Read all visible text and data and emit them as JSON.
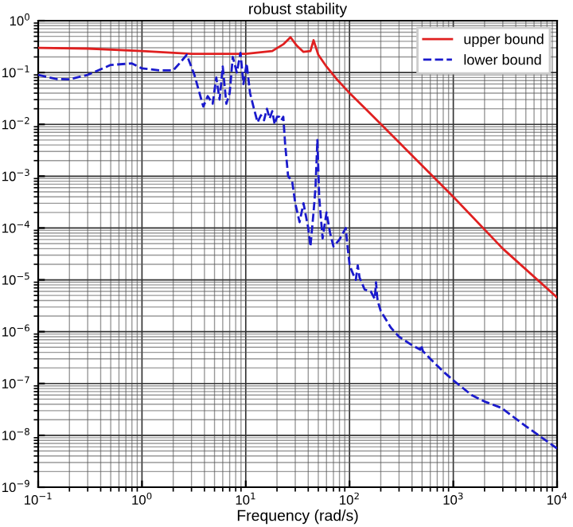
{
  "chart_data": {
    "type": "line",
    "title": "robust stability",
    "xlabel": "Frequency (rad/s)",
    "log": "xy",
    "grid": true,
    "legend": "top right",
    "xlim": [
      0.1,
      10000
    ],
    "ylim": [
      1e-09,
      1
    ],
    "xticks": [
      {
        "value": 0.1,
        "label": "10$^{−1}$"
      },
      {
        "value": 1,
        "label": "10$^{0}$"
      },
      {
        "value": 10,
        "label": "10$^{1}$"
      },
      {
        "value": 100,
        "label": "10$^{2}$"
      },
      {
        "value": 1000,
        "label": "10$^{3}$"
      },
      {
        "value": 10000,
        "label": "10$^{4}$"
      }
    ],
    "yticks": [
      {
        "value": 1e-09,
        "label": "10$^{−9}$"
      },
      {
        "value": 1e-08,
        "label": "10$^{−8}$"
      },
      {
        "value": 1e-07,
        "label": "10$^{−7}$"
      },
      {
        "value": 1e-06,
        "label": "10$^{−6}$"
      },
      {
        "value": 1e-05,
        "label": "10$^{−5}$"
      },
      {
        "value": 0.0001,
        "label": "10$^{−4}$"
      },
      {
        "value": 0.001,
        "label": "10$^{−3}$"
      },
      {
        "value": 0.01,
        "label": "10$^{−2}$"
      },
      {
        "value": 0.1,
        "label": "10$^{−1}$"
      },
      {
        "value": 1,
        "label": "10$^{0}$"
      }
    ],
    "series": [
      {
        "name": "upper bound",
        "color": "#e02020",
        "line_style": "solid",
        "x": [
          0.1,
          0.3,
          1,
          3,
          10,
          18,
          23,
          27,
          31,
          36,
          42,
          45,
          50,
          60,
          75,
          98,
          150,
          300,
          1000,
          3000,
          10000
        ],
        "values": [
          0.3,
          0.29,
          0.26,
          0.23,
          0.23,
          0.26,
          0.35,
          0.48,
          0.33,
          0.25,
          0.26,
          0.42,
          0.22,
          0.13,
          0.075,
          0.042,
          0.018,
          0.0045,
          0.0004,
          4e-05,
          4.6e-06
        ]
      },
      {
        "name": "lower bound",
        "color": "#1a1acc",
        "line_style": "dashed",
        "x": [
          0.1,
          0.15,
          0.2,
          0.3,
          0.5,
          0.8,
          1.0,
          1.5,
          2.0,
          2.3,
          2.7,
          3.2,
          3.9,
          4.3,
          4.8,
          5.2,
          5.6,
          6.0,
          6.5,
          7.0,
          7.5,
          8.2,
          8.9,
          9.5,
          10.2,
          11,
          12,
          13,
          14,
          15,
          16,
          17,
          18,
          19,
          20,
          21,
          22,
          23,
          24,
          25.6,
          28,
          30,
          33,
          36,
          40,
          42,
          45,
          47,
          49,
          51,
          55,
          60,
          65,
          70,
          80,
          92,
          95,
          100,
          105,
          110,
          115,
          120,
          125,
          140,
          160,
          175,
          180,
          185,
          190,
          200,
          250,
          300,
          400,
          480,
          490,
          510,
          600,
          800,
          1030,
          1500,
          2000,
          2900,
          5000,
          10000
        ],
        "values": [
          0.09,
          0.075,
          0.074,
          0.09,
          0.14,
          0.15,
          0.12,
          0.11,
          0.11,
          0.15,
          0.22,
          0.09,
          0.022,
          0.035,
          0.025,
          0.08,
          0.03,
          0.13,
          0.025,
          0.04,
          0.2,
          0.1,
          0.24,
          0.06,
          0.15,
          0.04,
          0.02,
          0.011,
          0.015,
          0.012,
          0.02,
          0.013,
          0.018,
          0.01,
          0.014,
          0.014,
          0.012,
          0.014,
          0.004,
          0.001,
          0.0008,
          0.0003,
          0.00013,
          0.0003,
          0.0001,
          4.4e-05,
          0.0002,
          0.0006,
          0.005,
          0.0004,
          6.3e-05,
          0.0002,
          8e-05,
          4.4e-05,
          6e-05,
          0.0001,
          5e-05,
          2e-05,
          1.5e-05,
          1.2e-05,
          1e-05,
          1.9e-05,
          1.1e-05,
          6.5e-06,
          6e-06,
          4.3e-06,
          9e-06,
          4.5e-06,
          3.5e-06,
          2.5e-06,
          1.2e-06,
          8e-07,
          5.5e-07,
          4.5e-07,
          5.5e-07,
          4.2e-07,
          3e-07,
          1.7e-07,
          1.1e-07,
          6e-08,
          4.5e-08,
          3.4e-08,
          1.5e-08,
          5.6e-09
        ]
      }
    ]
  }
}
